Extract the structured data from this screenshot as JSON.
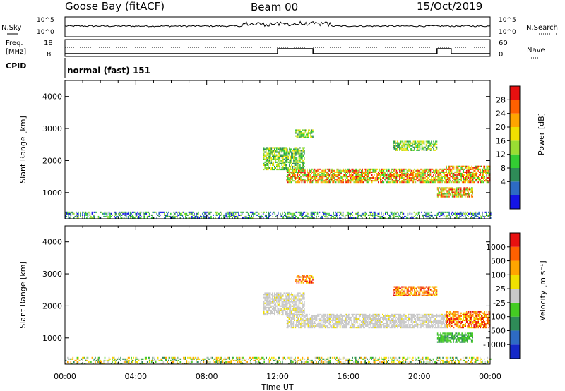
{
  "header": {
    "station": "Goose Bay (fitACF)",
    "beam": "Beam 00",
    "date": "15/Oct/2019"
  },
  "colors": {
    "black": "#000000",
    "gray": "#c8c8c8"
  },
  "noise_panel": {
    "left_label": "N.Sky",
    "right_label": "N.Search",
    "ticks_left": [
      "10^5",
      "10^0"
    ],
    "ticks_right": [
      "10^5",
      "10^0"
    ]
  },
  "freq_panel": {
    "left_label": "Freq.",
    "left_unit": "[MHz]",
    "ticks_left": [
      "18",
      "8"
    ],
    "right_label": "Nave",
    "ticks_right": [
      "60",
      "0"
    ],
    "cpid_label": "CPID"
  },
  "cpid_text": "normal (fast) 151",
  "chart_data": [
    {
      "type": "heatmap",
      "name": "power-panel",
      "xlabel": "Time UT",
      "ylabel": "Slant Range [km]",
      "xlim_hours": [
        0,
        24
      ],
      "ylim": [
        180,
        4500
      ],
      "yticks": [
        "4000",
        "3000",
        "2000",
        "1000"
      ],
      "xticks": [
        "00:00",
        "04:00",
        "08:00",
        "12:00",
        "16:00",
        "20:00",
        "00:00"
      ],
      "colorbar": {
        "label": "Power [dB]",
        "ticks": [
          "28",
          "24",
          "20",
          "16",
          "12",
          "8",
          "4"
        ],
        "colors": [
          "#1414e6",
          "#2d6bc4",
          "#2e8b57",
          "#33cc33",
          "#99dd33",
          "#f0e000",
          "#ffa500",
          "#ff6000",
          "#e81010"
        ]
      },
      "echo_regions": [
        {
          "t": [
            0,
            24
          ],
          "r": [
            180,
            400
          ],
          "level": "low"
        },
        {
          "t": [
            11.2,
            13.5
          ],
          "r": [
            1700,
            2400
          ],
          "level": "mid"
        },
        {
          "t": [
            12.5,
            21.5
          ],
          "r": [
            1300,
            1750
          ],
          "level": "high"
        },
        {
          "t": [
            13.0,
            14.0
          ],
          "r": [
            2700,
            2950
          ],
          "level": "mid"
        },
        {
          "t": [
            18.5,
            21.0
          ],
          "r": [
            2300,
            2600
          ],
          "level": "mid"
        },
        {
          "t": [
            21.5,
            24.0
          ],
          "r": [
            1300,
            1800
          ],
          "level": "high"
        },
        {
          "t": [
            21.0,
            23.0
          ],
          "r": [
            850,
            1150
          ],
          "level": "high"
        }
      ]
    },
    {
      "type": "heatmap",
      "name": "velocity-panel",
      "xlabel": "Time UT",
      "ylabel": "Slant Range [km]",
      "xlim_hours": [
        0,
        24
      ],
      "ylim": [
        180,
        4500
      ],
      "yticks": [
        "4000",
        "3000",
        "2000",
        "1000"
      ],
      "xticks": [
        "00:00",
        "04:00",
        "08:00",
        "12:00",
        "16:00",
        "20:00",
        "00:00"
      ],
      "colorbar": {
        "label": "Velocity [m s⁻¹]",
        "ticks": [
          "1000",
          "500",
          "100",
          "25",
          "-25",
          "-100",
          "-500",
          "-1000"
        ],
        "colors": [
          "#1428c8",
          "#2e6bc4",
          "#2e8b57",
          "#44cc22",
          "#c8c8c8",
          "#f0e000",
          "#ffa500",
          "#ff6000",
          "#e81010"
        ]
      },
      "echo_regions": [
        {
          "t": [
            0,
            24
          ],
          "r": [
            180,
            400
          ],
          "level": "low"
        },
        {
          "t": [
            11.2,
            13.5
          ],
          "r": [
            1700,
            2400
          ],
          "level": "gray"
        },
        {
          "t": [
            12.5,
            21.5
          ],
          "r": [
            1300,
            1750
          ],
          "level": "gray"
        },
        {
          "t": [
            13.0,
            14.0
          ],
          "r": [
            2700,
            2950
          ],
          "level": "warm"
        },
        {
          "t": [
            18.5,
            21.0
          ],
          "r": [
            2300,
            2600
          ],
          "level": "warm"
        },
        {
          "t": [
            21.5,
            24.0
          ],
          "r": [
            1300,
            1800
          ],
          "level": "warm"
        },
        {
          "t": [
            21.0,
            23.0
          ],
          "r": [
            850,
            1150
          ],
          "level": "green"
        }
      ]
    }
  ]
}
